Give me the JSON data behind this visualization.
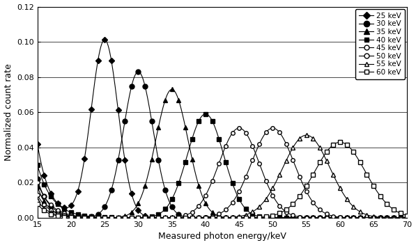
{
  "title": "",
  "xlabel": "Measured photon energy/keV",
  "ylabel": "Normalized count rate",
  "xlim": [
    15,
    70
  ],
  "ylim": [
    0,
    0.12
  ],
  "yticks": [
    0,
    0.02,
    0.04,
    0.06,
    0.08,
    0.1,
    0.12
  ],
  "xticks": [
    15,
    20,
    25,
    30,
    35,
    40,
    45,
    50,
    55,
    60,
    65,
    70
  ],
  "series": [
    {
      "label": "25 keV",
      "peak": 25.0,
      "amplitude": 0.101,
      "sigma": 2.0,
      "baseline": 0.042,
      "baseline_decay": 0.55,
      "marker": "D",
      "filled": true,
      "markersize": 4
    },
    {
      "label": "30 keV",
      "peak": 30.0,
      "amplitude": 0.083,
      "sigma": 2.2,
      "baseline": 0.022,
      "baseline_decay": 0.6,
      "marker": "o",
      "filled": true,
      "markersize": 5
    },
    {
      "label": "35 keV",
      "peak": 35.0,
      "amplitude": 0.073,
      "sigma": 2.4,
      "baseline": 0.018,
      "baseline_decay": 0.65,
      "marker": "^",
      "filled": true,
      "markersize": 5
    },
    {
      "label": "40 keV",
      "peak": 40.0,
      "amplitude": 0.059,
      "sigma": 2.7,
      "baseline": 0.03,
      "baseline_decay": 0.45,
      "marker": "s",
      "filled": true,
      "markersize": 4
    },
    {
      "label": "45 keV",
      "peak": 45.0,
      "amplitude": 0.051,
      "sigma": 3.0,
      "baseline": 0.02,
      "baseline_decay": 0.5,
      "marker": "o",
      "filled": false,
      "markersize": 4
    },
    {
      "label": "50 keV",
      "peak": 50.0,
      "amplitude": 0.051,
      "sigma": 3.2,
      "baseline": 0.013,
      "baseline_decay": 0.55,
      "marker": "o",
      "filled": false,
      "markersize": 4
    },
    {
      "label": "55 keV",
      "peak": 55.0,
      "amplitude": 0.047,
      "sigma": 3.5,
      "baseline": 0.01,
      "baseline_decay": 0.6,
      "marker": "^",
      "filled": false,
      "markersize": 4
    },
    {
      "label": "60 keV",
      "peak": 60.0,
      "amplitude": 0.043,
      "sigma": 3.8,
      "baseline": 0.008,
      "baseline_decay": 0.65,
      "marker": "s",
      "filled": false,
      "markersize": 4
    }
  ]
}
